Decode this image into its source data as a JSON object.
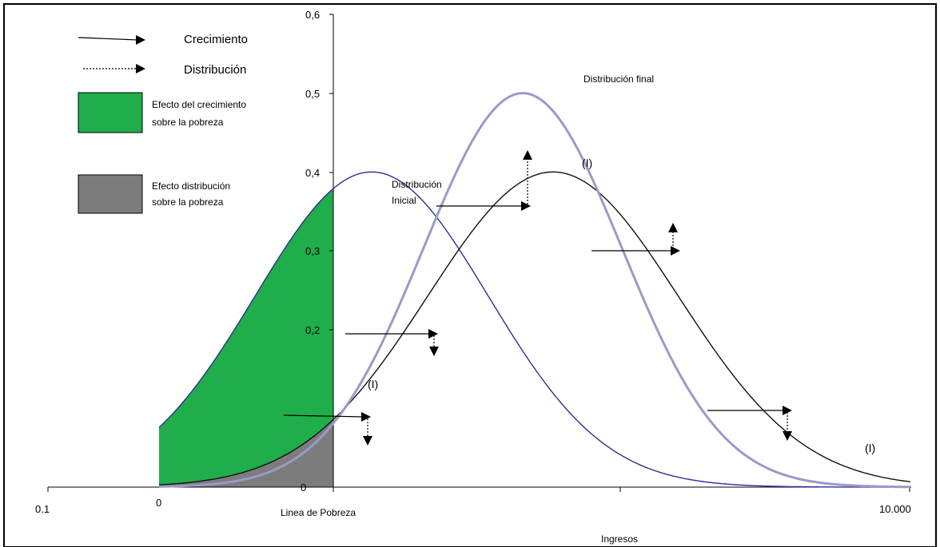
{
  "legend": {
    "growth_label": "Crecimiento",
    "distribution_label": "Distribución",
    "growth_effect_label_1": "Efecto del crecimiento",
    "growth_effect_label_2": "sobre la pobreza",
    "dist_effect_label_1": "Efecto distribución",
    "dist_effect_label_2": "sobre la pobreza"
  },
  "chart_data": {
    "type": "line",
    "xlabel": "Ingresos",
    "x_tick_labels": [
      "0.1",
      "0",
      "10.000"
    ],
    "y_tick_labels": [
      "0",
      "0,2",
      "0,3",
      "0,4",
      "0,5",
      "0,6"
    ],
    "ylim": [
      0,
      0.6
    ],
    "poverty_line_label": "Linea de Pobreza",
    "series": [
      {
        "name": "Distribución Inicial",
        "color": "#2e2e9a",
        "mean_pct": 37.5,
        "sd_pct": 13.5,
        "peak": 0.4
      },
      {
        "name": "(I)",
        "color": "#111111",
        "mean_pct": 58.5,
        "sd_pct": 14.5,
        "peak": 0.4
      },
      {
        "name": "Distribución final",
        "color": "#9a9ac8",
        "mean_pct": 55.0,
        "sd_pct": 11.5,
        "peak": 0.5
      }
    ],
    "annotations": {
      "initial_1": "Distribución",
      "initial_2": "Inicial",
      "final": "Distribución final",
      "intermediate_1": "(I)",
      "intermediate_2": "(I)",
      "intermediate_3": "(I)"
    },
    "colors": {
      "growth_effect": "#1fae4a",
      "distribution_effect": "#7c7c7c"
    },
    "grid": false
  }
}
